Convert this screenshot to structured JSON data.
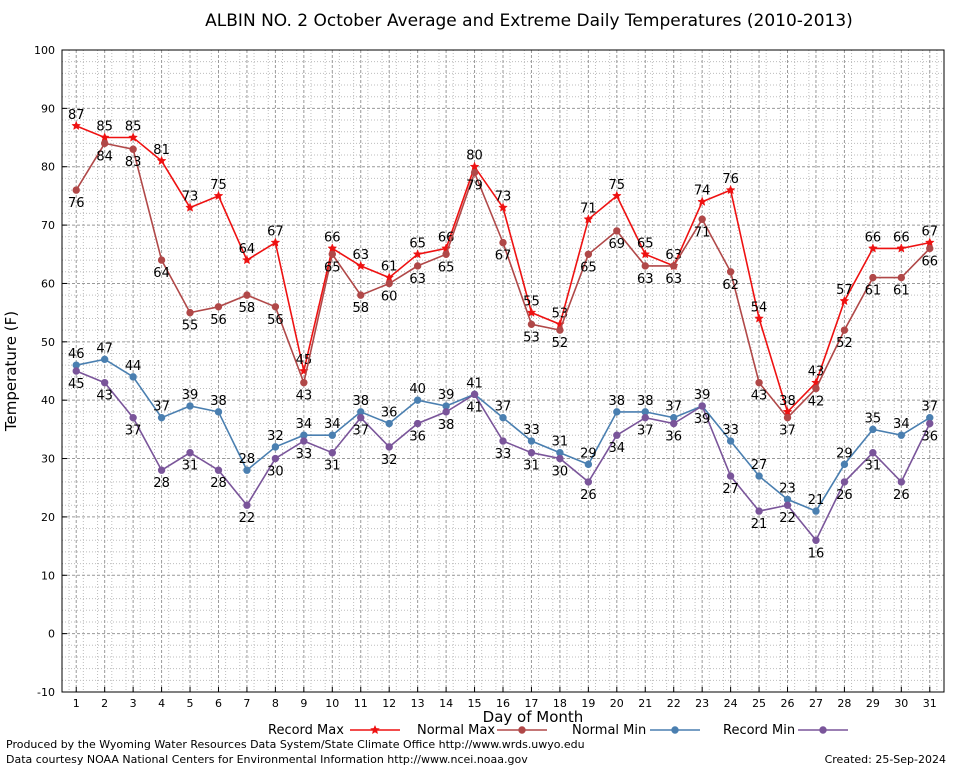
{
  "chart_data": {
    "type": "line",
    "title": "ALBIN NO. 2 October Average and Extreme Daily Temperatures (2010-2013)",
    "xlabel": "Day of Month",
    "ylabel": "Temperature (F)",
    "ylim": [
      -10,
      100
    ],
    "xlim": [
      0.5,
      31.5
    ],
    "grid": true,
    "legend_position": "bottom",
    "x": [
      1,
      2,
      3,
      4,
      5,
      6,
      7,
      8,
      9,
      10,
      11,
      12,
      13,
      14,
      15,
      16,
      17,
      18,
      19,
      20,
      21,
      22,
      23,
      24,
      25,
      26,
      27,
      28,
      29,
      30,
      31
    ],
    "y_ticks": [
      -10,
      0,
      10,
      20,
      30,
      40,
      50,
      60,
      70,
      80,
      90,
      100
    ],
    "series": [
      {
        "name": "Record Max",
        "color": "#ee1111",
        "marker": "star",
        "values": [
          87,
          85,
          85,
          81,
          73,
          75,
          64,
          67,
          45,
          66,
          63,
          61,
          65,
          66,
          80,
          73,
          55,
          53,
          71,
          75,
          65,
          63,
          74,
          76,
          54,
          38,
          43,
          57,
          66,
          66,
          67
        ]
      },
      {
        "name": "Normal Max",
        "color": "#b04848",
        "marker": "circle",
        "values": [
          76,
          84,
          83,
          64,
          55,
          56,
          58,
          56,
          43,
          65,
          58,
          60,
          63,
          65,
          79,
          67,
          53,
          52,
          65,
          69,
          63,
          63,
          71,
          62,
          43,
          37,
          42,
          52,
          61,
          61,
          66
        ]
      },
      {
        "name": "Normal Min",
        "color": "#4a7fb0",
        "marker": "circle",
        "values": [
          46,
          47,
          44,
          37,
          39,
          38,
          28,
          32,
          34,
          34,
          38,
          36,
          40,
          39,
          41,
          37,
          33,
          31,
          29,
          38,
          38,
          37,
          39,
          33,
          27,
          23,
          21,
          29,
          35,
          34,
          37
        ]
      },
      {
        "name": "Record Min",
        "color": "#7a559a",
        "marker": "circle",
        "values": [
          45,
          43,
          37,
          28,
          31,
          28,
          22,
          30,
          33,
          31,
          37,
          32,
          36,
          38,
          41,
          33,
          31,
          30,
          26,
          34,
          37,
          36,
          39,
          27,
          21,
          22,
          16,
          26,
          31,
          26,
          36
        ]
      }
    ]
  },
  "footer": {
    "credit_line1": "Produced by the Wyoming Water Resources Data System/State Climate Office http://www.wrds.uwyo.edu",
    "credit_line2": "Data courtesy NOAA National Centers for Environmental Information http://www.ncei.noaa.gov",
    "created": "Created:  25-Sep-2024"
  }
}
